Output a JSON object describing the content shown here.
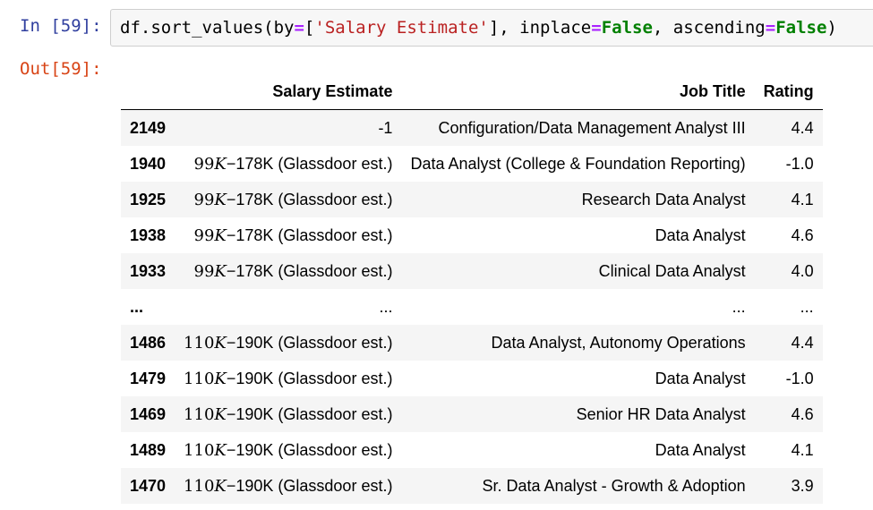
{
  "input_cell": {
    "prompt": "In [59]:",
    "code": {
      "prefix": "df.sort_values(by",
      "eq1": "=",
      "bracket_open": "[",
      "string": "'Salary Estimate'",
      "mid1": "], inplace",
      "eq2": "=",
      "kw1": "False",
      "mid2": ", ascending",
      "eq3": "=",
      "kw2": "False",
      "suffix": ")"
    }
  },
  "output_cell": {
    "prompt": "Out[59]:"
  },
  "table": {
    "columns": [
      "",
      "Salary Estimate",
      "Job Title",
      "Rating"
    ],
    "rows": [
      {
        "index": "2149",
        "salary": "-1",
        "job_title": "Configuration/Data Management Analyst III",
        "rating": "4.4"
      },
      {
        "index": "1940",
        "salary_num": "99",
        "salary_k": "K",
        "salary_rest": "−178K (Glassdoor est.)",
        "job_title": "Data Analyst (College & Foundation Reporting)",
        "rating": "-1.0"
      },
      {
        "index": "1925",
        "salary_num": "99",
        "salary_k": "K",
        "salary_rest": "−178K (Glassdoor est.)",
        "job_title": "Research Data Analyst",
        "rating": "4.1"
      },
      {
        "index": "1938",
        "salary_num": "99",
        "salary_k": "K",
        "salary_rest": "−178K (Glassdoor est.)",
        "job_title": "Data Analyst",
        "rating": "4.6"
      },
      {
        "index": "1933",
        "salary_num": "99",
        "salary_k": "K",
        "salary_rest": "−178K (Glassdoor est.)",
        "job_title": "Clinical Data Analyst",
        "rating": "4.0"
      },
      {
        "index": "...",
        "salary": "...",
        "job_title": "...",
        "rating": "..."
      },
      {
        "index": "1486",
        "salary_num": "110",
        "salary_k": "K",
        "salary_rest": "−190K (Glassdoor est.)",
        "job_title": "Data Analyst, Autonomy Operations",
        "rating": "4.4"
      },
      {
        "index": "1479",
        "salary_num": "110",
        "salary_k": "K",
        "salary_rest": "−190K (Glassdoor est.)",
        "job_title": "Data Analyst",
        "rating": "-1.0"
      },
      {
        "index": "1469",
        "salary_num": "110",
        "salary_k": "K",
        "salary_rest": "−190K (Glassdoor est.)",
        "job_title": "Senior HR Data Analyst",
        "rating": "4.6"
      },
      {
        "index": "1489",
        "salary_num": "110",
        "salary_k": "K",
        "salary_rest": "−190K (Glassdoor est.)",
        "job_title": "Data Analyst",
        "rating": "4.1"
      },
      {
        "index": "1470",
        "salary_num": "110",
        "salary_k": "K",
        "salary_rest": "−190K (Glassdoor est.)",
        "job_title": "Sr. Data Analyst - Growth & Adoption",
        "rating": "3.9"
      }
    ]
  }
}
